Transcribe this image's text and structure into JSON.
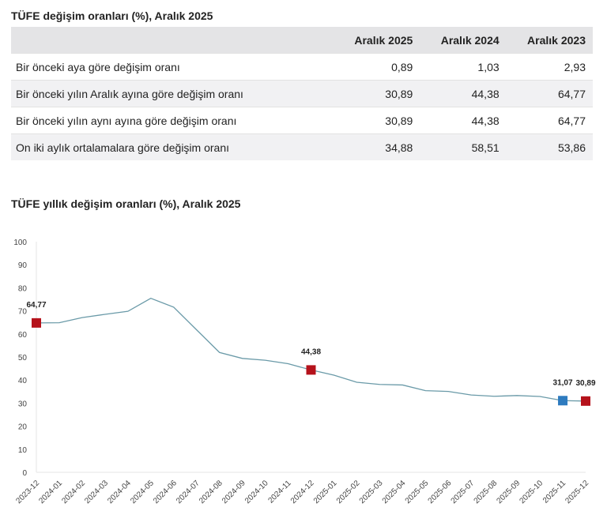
{
  "table": {
    "title": "TÜFE değişim oranları (%), Aralık 2025",
    "headers": [
      "",
      "Aralık 2025",
      "Aralık 2024",
      "Aralık 2023"
    ],
    "rows": [
      {
        "label": "Bir önceki aya göre değişim oranı",
        "values": [
          "0,89",
          "1,03",
          "2,93"
        ]
      },
      {
        "label": "Bir önceki yılın Aralık ayına göre değişim oranı",
        "values": [
          "30,89",
          "44,38",
          "64,77"
        ]
      },
      {
        "label": "Bir önceki yılın aynı ayına göre değişim oranı",
        "values": [
          "30,89",
          "44,38",
          "64,77"
        ]
      },
      {
        "label": "On iki aylık ortalamalara göre değişim oranı",
        "values": [
          "34,88",
          "58,51",
          "53,86"
        ]
      }
    ]
  },
  "chart_data": {
    "type": "line",
    "title": "TÜFE yıllık değişim oranları (%), Aralık 2025",
    "x": [
      "2023-12",
      "2024-01",
      "2024-02",
      "2024-03",
      "2024-04",
      "2024-05",
      "2024-06",
      "2024-07",
      "2024-08",
      "2024-09",
      "2024-10",
      "2024-11",
      "2024-12",
      "2025-01",
      "2025-02",
      "2025-03",
      "2025-04",
      "2025-05",
      "2025-06",
      "2025-07",
      "2025-08",
      "2025-09",
      "2025-10",
      "2025-11",
      "2025-12"
    ],
    "values": [
      64.77,
      64.86,
      67.07,
      68.5,
      69.8,
      75.45,
      71.6,
      61.78,
      51.97,
      49.38,
      48.58,
      47.09,
      44.38,
      42.12,
      39.05,
      38.1,
      37.86,
      35.41,
      35.05,
      33.52,
      32.95,
      33.29,
      32.87,
      31.07,
      30.89
    ],
    "ylim": [
      0,
      100
    ],
    "yticks": [
      "0",
      "10",
      "20",
      "30",
      "40",
      "50",
      "60",
      "70",
      "80",
      "90",
      "100"
    ],
    "markers": [
      {
        "index": 0,
        "label": "64,77",
        "color": "#b5121b"
      },
      {
        "index": 12,
        "label": "44,38",
        "color": "#b5121b"
      },
      {
        "index": 23,
        "label": "31,07",
        "color": "#2e7bbf"
      },
      {
        "index": 24,
        "label": "30,89",
        "color": "#b5121b"
      }
    ],
    "line_color": "#6a9aa8",
    "grid": false
  }
}
